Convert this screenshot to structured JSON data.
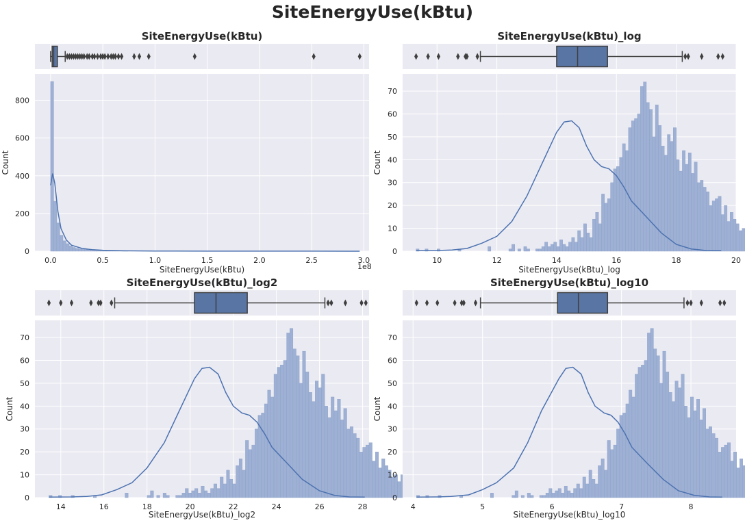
{
  "figure": {
    "suptitle": "SiteEnergyUse(kBtu)"
  },
  "style": {
    "panel_bg": "#eaeaf2",
    "grid": "#ffffff",
    "bar": "#9eb0d4",
    "bar_edge": "#8aa0c8",
    "kde": "#4c72b0",
    "box_fill": "#5975a4",
    "box_line": "#3f3f3f"
  },
  "chart_data": [
    {
      "type": "bar",
      "title": "SiteEnergyUse(kBtu)",
      "xlabel": "SiteEnergyUse(kBtu)",
      "ylabel": "Count",
      "offset_label": "1e8",
      "xlim": [
        -0.15,
        3.05
      ],
      "ylim": [
        0,
        940
      ],
      "xticks": [
        0,
        0.5,
        1.0,
        1.5,
        2.0,
        2.5,
        3.0
      ],
      "xtick_labels": [
        "0.0",
        "0.5",
        "1.0",
        "1.5",
        "2.0",
        "2.5",
        "3.0"
      ],
      "yticks": [
        0,
        200,
        400,
        600,
        800
      ],
      "bins": {
        "start": 0.0,
        "width": 0.0297,
        "counts": [
          900,
          265,
          150,
          85,
          55,
          40,
          28,
          20,
          15,
          12,
          10,
          8,
          6,
          5,
          4,
          3,
          3,
          2,
          2,
          1,
          1,
          1,
          1,
          1,
          1
        ]
      },
      "kde": {
        "x": [
          0,
          0.02,
          0.04,
          0.07,
          0.1,
          0.15,
          0.2,
          0.3,
          0.4,
          0.5,
          0.7,
          1.0,
          1.5,
          2.0,
          2.5,
          2.96
        ],
        "y": [
          350,
          412,
          360,
          210,
          120,
          60,
          32,
          15,
          8,
          5,
          2,
          1,
          0.5,
          0.3,
          0.2,
          0.1
        ]
      },
      "box": {
        "q1": 0.015,
        "median": 0.03,
        "q3": 0.065,
        "whisker_low": 0.0,
        "whisker_high": 0.14,
        "outliers": [
          0.16,
          0.18,
          0.2,
          0.22,
          0.24,
          0.26,
          0.28,
          0.3,
          0.32,
          0.35,
          0.37,
          0.4,
          0.42,
          0.45,
          0.48,
          0.5,
          0.52,
          0.55,
          0.58,
          0.6,
          0.62,
          0.65,
          0.68,
          0.8,
          0.85,
          0.94,
          1.38,
          2.52,
          2.96
        ]
      }
    },
    {
      "type": "bar",
      "title": "SiteEnergyUse(kBtu)_log",
      "xlabel": "SiteEnergyUse(kBtu)_log",
      "ylabel": "Count",
      "xlim": [
        8.85,
        20.0
      ],
      "ylim": [
        0,
        77.5
      ],
      "xticks": [
        10,
        12,
        14,
        16,
        18,
        20
      ],
      "xtick_labels": [
        "10",
        "12",
        "14",
        "16",
        "18",
        "20"
      ],
      "yticks": [
        0,
        10,
        20,
        30,
        40,
        50,
        60,
        70
      ],
      "bins": {
        "start": 9.3,
        "width": 0.1,
        "counts": [
          1,
          0,
          0,
          1,
          0,
          0,
          0,
          1,
          0,
          0,
          0,
          0,
          0,
          0,
          1,
          0,
          0,
          0,
          0,
          0,
          0,
          0,
          0,
          0,
          2,
          0,
          0,
          0,
          0,
          0,
          0,
          1,
          3,
          0,
          1,
          0,
          2,
          1,
          0,
          0,
          1,
          1,
          2,
          4,
          2,
          3,
          4,
          2,
          5,
          3,
          2,
          4,
          6,
          4,
          9,
          6,
          12,
          8,
          6,
          14,
          17,
          12,
          25,
          21,
          23,
          30,
          36,
          37,
          41,
          47,
          44,
          54,
          57,
          58,
          60,
          72,
          74,
          65,
          62,
          50,
          64,
          55,
          46,
          42,
          51,
          48,
          54,
          40,
          35,
          44,
          38,
          43,
          34,
          39,
          30,
          31,
          28,
          26,
          20,
          22,
          23,
          24,
          16,
          20,
          13,
          17,
          14,
          12,
          9,
          10,
          7,
          10,
          9,
          6,
          5,
          5,
          6,
          3,
          3,
          2,
          1,
          2,
          2,
          1,
          0,
          1,
          0,
          0,
          1,
          0,
          0,
          0,
          0,
          0,
          1,
          0,
          0,
          0,
          0,
          0,
          0,
          0,
          0,
          0,
          0,
          0,
          0,
          0,
          0,
          0,
          0,
          0,
          0,
          0,
          0,
          0,
          0,
          1,
          1
        ]
      },
      "kde": {
        "x": [
          9.3,
          10,
          10.5,
          11,
          11.5,
          12,
          12.5,
          13,
          13.5,
          14,
          14.25,
          14.5,
          14.75,
          15,
          15.25,
          15.5,
          15.75,
          16,
          16.25,
          16.5,
          17,
          17.5,
          18,
          18.5,
          19,
          19.5
        ],
        "y": [
          0.2,
          0.3,
          0.5,
          1.2,
          3.5,
          6.5,
          13,
          24,
          38,
          52,
          56.5,
          57,
          54,
          46,
          40,
          37,
          36,
          33,
          28,
          22,
          15,
          8,
          3,
          1,
          0.3,
          0.2
        ]
      },
      "box": {
        "q1": 14.0,
        "median": 14.7,
        "q3": 15.7,
        "whisker_low": 11.45,
        "whisker_high": 18.2,
        "outliers": [
          9.3,
          9.7,
          10.05,
          10.7,
          10.95,
          11.0,
          11.35,
          18.3,
          18.4,
          18.85,
          19.4,
          19.55
        ]
      }
    },
    {
      "type": "bar",
      "title": "SiteEnergyUse(kBtu)_log2",
      "xlabel": "SiteEnergyUse(kBtu)_log2",
      "ylabel": "Count",
      "xlim": [
        12.8,
        28.3
      ],
      "ylim": [
        0,
        77.5
      ],
      "xticks": [
        14,
        16,
        18,
        20,
        22,
        24,
        26,
        28
      ],
      "xtick_labels": [
        "14",
        "16",
        "18",
        "20",
        "22",
        "24",
        "26",
        "28"
      ],
      "yticks": [
        0,
        10,
        20,
        30,
        40,
        50,
        60,
        70
      ],
      "bins": {
        "start": 13.45,
        "width": 0.147,
        "counts": [
          1,
          0,
          0,
          1,
          0,
          0,
          0,
          1,
          0,
          0,
          0,
          0,
          0,
          0,
          1,
          0,
          0,
          0,
          0,
          0,
          0,
          0,
          0,
          0,
          2,
          0,
          0,
          0,
          0,
          0,
          0,
          1,
          3,
          0,
          1,
          0,
          2,
          1,
          0,
          0,
          1,
          1,
          2,
          4,
          2,
          3,
          4,
          2,
          5,
          3,
          2,
          4,
          6,
          4,
          9,
          6,
          12,
          8,
          6,
          14,
          17,
          12,
          25,
          21,
          23,
          30,
          36,
          37,
          41,
          47,
          44,
          54,
          57,
          58,
          60,
          72,
          74,
          65,
          62,
          50,
          64,
          55,
          46,
          42,
          51,
          48,
          54,
          40,
          35,
          44,
          38,
          43,
          34,
          39,
          30,
          31,
          28,
          26,
          20,
          22,
          23,
          24,
          16,
          20,
          13,
          17,
          14,
          12,
          9,
          10,
          7,
          10,
          9,
          6,
          5,
          5,
          6,
          3,
          3,
          2,
          1,
          2,
          2,
          1,
          0,
          1,
          0,
          0,
          1,
          0,
          0,
          0,
          0,
          0,
          1,
          0,
          0,
          0,
          0,
          0,
          0,
          0,
          0,
          0,
          0,
          0,
          0,
          0,
          0,
          0,
          0,
          0,
          0,
          0,
          0,
          0,
          0,
          1,
          1
        ]
      },
      "kde": {
        "x": [
          13.45,
          14.5,
          15.2,
          15.9,
          16.6,
          17.3,
          18.0,
          18.8,
          19.5,
          20.2,
          20.55,
          20.9,
          21.3,
          21.65,
          22.0,
          22.4,
          22.75,
          23.1,
          23.45,
          23.8,
          24.5,
          25.2,
          26.0,
          26.7,
          27.4,
          28.1
        ],
        "y": [
          0.2,
          0.3,
          0.5,
          1.2,
          3.5,
          6.5,
          13,
          24,
          38,
          52,
          56.5,
          57,
          54,
          46,
          40,
          37,
          36,
          33,
          28,
          22,
          15,
          8,
          3,
          1,
          0.3,
          0.2
        ]
      },
      "box": {
        "q1": 20.2,
        "median": 21.2,
        "q3": 22.65,
        "whisker_low": 16.5,
        "whisker_high": 26.25,
        "outliers": [
          13.45,
          14.0,
          14.5,
          15.4,
          15.75,
          15.85,
          16.35,
          26.4,
          26.55,
          27.2,
          27.95,
          28.15
        ]
      }
    },
    {
      "type": "bar",
      "title": "SiteEnergyUse(kBtu)_log10",
      "xlabel": "SiteEnergyUse(kBtu)_log10",
      "ylabel": "Count",
      "xlim": [
        3.85,
        8.65
      ],
      "ylim": [
        0,
        77.5
      ],
      "xticks": [
        4,
        5,
        6,
        7,
        8
      ],
      "xtick_labels": [
        "4",
        "5",
        "6",
        "7",
        "8"
      ],
      "yticks": [
        0,
        10,
        20,
        30,
        40,
        50,
        60,
        70
      ],
      "bins": {
        "start": 4.05,
        "width": 0.0443,
        "counts": [
          1,
          0,
          0,
          1,
          0,
          0,
          0,
          1,
          0,
          0,
          0,
          0,
          0,
          0,
          1,
          0,
          0,
          0,
          0,
          0,
          0,
          0,
          0,
          0,
          2,
          0,
          0,
          0,
          0,
          0,
          0,
          1,
          3,
          0,
          1,
          0,
          2,
          1,
          0,
          0,
          1,
          1,
          2,
          4,
          2,
          3,
          4,
          2,
          5,
          3,
          2,
          4,
          6,
          4,
          9,
          6,
          12,
          8,
          6,
          14,
          17,
          12,
          25,
          21,
          23,
          30,
          36,
          37,
          41,
          47,
          44,
          54,
          57,
          58,
          60,
          72,
          74,
          65,
          62,
          50,
          64,
          55,
          46,
          42,
          51,
          48,
          54,
          40,
          35,
          44,
          38,
          43,
          34,
          39,
          30,
          31,
          28,
          26,
          20,
          22,
          23,
          24,
          16,
          20,
          13,
          17,
          14,
          12,
          9,
          10,
          7,
          10,
          9,
          6,
          5,
          5,
          6,
          3,
          3,
          2,
          1,
          2,
          2,
          1,
          0,
          1,
          0,
          0,
          1,
          0,
          0,
          0,
          0,
          0,
          1,
          0,
          0,
          0,
          0,
          0,
          0,
          0,
          0,
          0,
          0,
          0,
          0,
          0,
          0,
          0,
          0,
          0,
          0,
          0,
          0,
          0,
          0,
          1,
          1
        ]
      },
      "kde": {
        "x": [
          4.05,
          4.35,
          4.55,
          4.8,
          5.0,
          5.2,
          5.45,
          5.65,
          5.85,
          6.1,
          6.2,
          6.3,
          6.42,
          6.52,
          6.62,
          6.75,
          6.85,
          6.95,
          7.05,
          7.15,
          7.37,
          7.6,
          7.82,
          8.05,
          8.27,
          8.45
        ],
        "y": [
          0.2,
          0.3,
          0.5,
          1.2,
          3.5,
          6.5,
          13,
          24,
          38,
          52,
          56.5,
          57,
          54,
          46,
          40,
          37,
          36,
          33,
          28,
          22,
          15,
          8,
          3,
          1,
          0.3,
          0.2
        ]
      },
      "box": {
        "q1": 6.08,
        "median": 6.38,
        "q3": 6.8,
        "whisker_low": 4.97,
        "whisker_high": 7.9,
        "outliers": [
          4.05,
          4.2,
          4.35,
          4.6,
          4.7,
          4.73,
          4.9,
          7.95,
          8.0,
          8.15,
          8.42,
          8.48
        ]
      }
    }
  ]
}
